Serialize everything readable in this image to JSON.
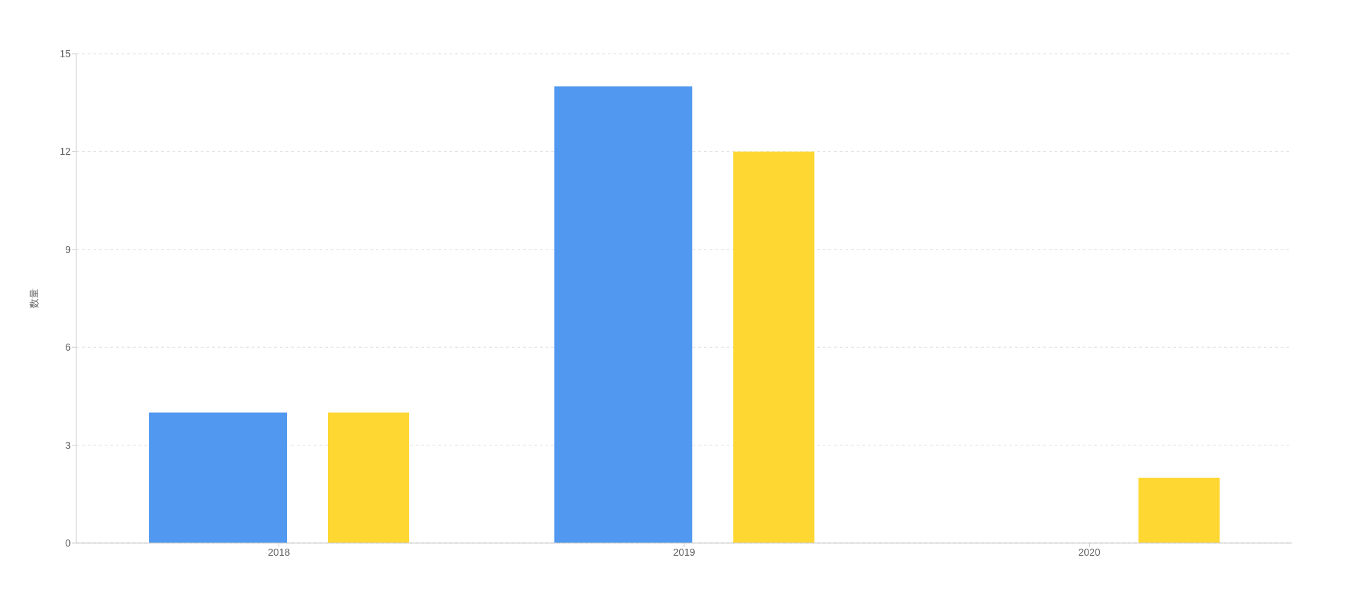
{
  "chart_data": {
    "type": "bar",
    "ylabel": "数量",
    "categories": [
      "2018",
      "2019",
      "2020"
    ],
    "series": [
      {
        "color": "#5098f0",
        "values": [
          4,
          14,
          null
        ]
      },
      {
        "color": "#fed733",
        "values": [
          4,
          12,
          2
        ]
      }
    ],
    "ylim": [
      0,
      15
    ],
    "yticks": [
      0,
      3,
      6,
      9,
      12,
      15
    ],
    "grid": "y",
    "legend": false
  }
}
